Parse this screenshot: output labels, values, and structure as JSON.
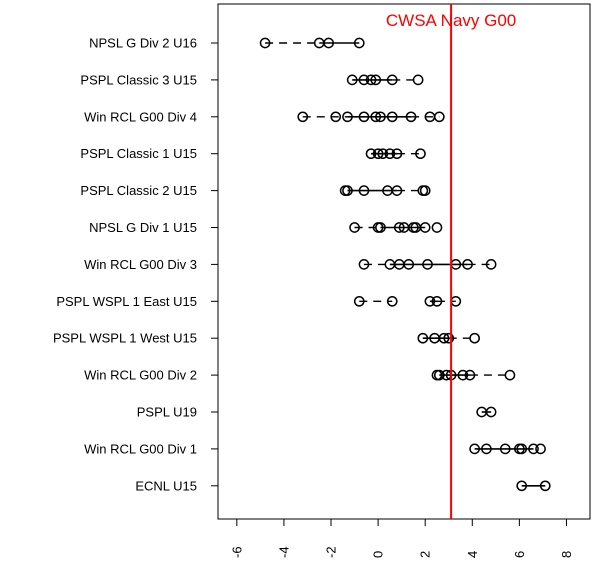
{
  "chart_data": {
    "type": "scatter",
    "title": "",
    "xlabel": "",
    "ylabel": "",
    "xlim": [
      -6.8,
      9.0
    ],
    "x_ticks": [
      -6,
      -4,
      -2,
      0,
      2,
      4,
      6,
      8
    ],
    "x_tick_labels": [
      "-6",
      "-4",
      "-2",
      "0",
      "2",
      "4",
      "6",
      "8"
    ],
    "reference_line": {
      "label": "CWSA Navy G00",
      "x": 3.1,
      "color": "#ff0000"
    },
    "categories": [
      {
        "name": "NPSL G Div 2 U16",
        "points": [
          -4.8,
          -2.5,
          -2.1,
          -0.8
        ],
        "solid": [
          [
            -2.5,
            -0.8
          ]
        ],
        "dashed": [
          [
            -4.8,
            -2.5
          ]
        ]
      },
      {
        "name": "PSPL Classic 3 U15",
        "points": [
          -1.1,
          -0.6,
          -0.3,
          -0.1,
          0.6,
          1.7
        ],
        "solid": [
          [
            -1.1,
            0.6
          ]
        ],
        "dashed": [
          [
            0.6,
            1.7
          ]
        ]
      },
      {
        "name": "Win RCL G00 Div 4",
        "points": [
          -3.2,
          -1.8,
          -1.3,
          -0.6,
          -0.1,
          0.1,
          0.6,
          1.4,
          2.2,
          2.6
        ],
        "solid": [
          [
            -1.3,
            1.4
          ]
        ],
        "dashed": [
          [
            -3.2,
            -1.3
          ],
          [
            1.4,
            2.6
          ]
        ]
      },
      {
        "name": "PSPL Classic 1 U15",
        "points": [
          -0.3,
          0.0,
          0.2,
          0.5,
          0.8,
          1.8
        ],
        "solid": [
          [
            -0.3,
            0.8
          ]
        ],
        "dashed": [
          [
            0.8,
            1.8
          ]
        ]
      },
      {
        "name": "PSPL Classic 2 U15",
        "points": [
          -1.4,
          -1.3,
          -0.6,
          0.4,
          0.8,
          1.9,
          2.0
        ],
        "solid": [
          [
            -1.3,
            0.8
          ]
        ],
        "dashed": [
          [
            0.8,
            1.9
          ]
        ]
      },
      {
        "name": "NPSL G Div 1 U15",
        "points": [
          -1.0,
          0.0,
          0.1,
          0.9,
          1.1,
          1.5,
          1.6,
          2.0,
          2.5
        ],
        "solid": [
          [
            0.1,
            2.0
          ]
        ],
        "dashed": [
          [
            -1.0,
            0.1
          ]
        ]
      },
      {
        "name": "Win RCL G00 Div 3",
        "points": [
          -0.6,
          0.5,
          0.9,
          1.3,
          2.1,
          3.3,
          3.8,
          4.8
        ],
        "solid": [
          [
            0.5,
            3.8
          ]
        ],
        "dashed": [
          [
            -0.6,
            0.5
          ],
          [
            3.8,
            4.8
          ]
        ]
      },
      {
        "name": "PSPL WSPL 1 East U15",
        "points": [
          -0.8,
          0.6,
          2.2,
          2.5,
          3.3
        ],
        "solid": [
          [
            2.2,
            2.5
          ]
        ],
        "dashed": [
          [
            -0.8,
            0.6
          ],
          [
            2.5,
            3.3
          ]
        ]
      },
      {
        "name": "PSPL WSPL 1 West U15",
        "points": [
          1.9,
          2.4,
          2.8,
          3.0,
          4.1
        ],
        "solid": [
          [
            1.9,
            3.0
          ]
        ],
        "dashed": [
          [
            3.0,
            4.1
          ]
        ]
      },
      {
        "name": "Win RCL G00 Div 2",
        "points": [
          2.5,
          2.6,
          2.9,
          3.1,
          3.6,
          3.9,
          5.6
        ],
        "solid": [
          [
            2.6,
            3.9
          ]
        ],
        "dashed": [
          [
            3.9,
            5.6
          ]
        ]
      },
      {
        "name": "PSPL U19",
        "points": [
          4.4,
          4.8
        ],
        "solid": [
          [
            4.4,
            4.8
          ]
        ],
        "dashed": []
      },
      {
        "name": "Win RCL G00 Div 1",
        "points": [
          4.1,
          4.6,
          5.4,
          6.0,
          6.1,
          6.6,
          6.9
        ],
        "solid": [
          [
            4.1,
            6.6
          ]
        ],
        "dashed": []
      },
      {
        "name": "ECNL U15",
        "points": [
          6.1,
          7.1
        ],
        "solid": [
          [
            6.1,
            7.1
          ]
        ],
        "dashed": []
      }
    ]
  }
}
